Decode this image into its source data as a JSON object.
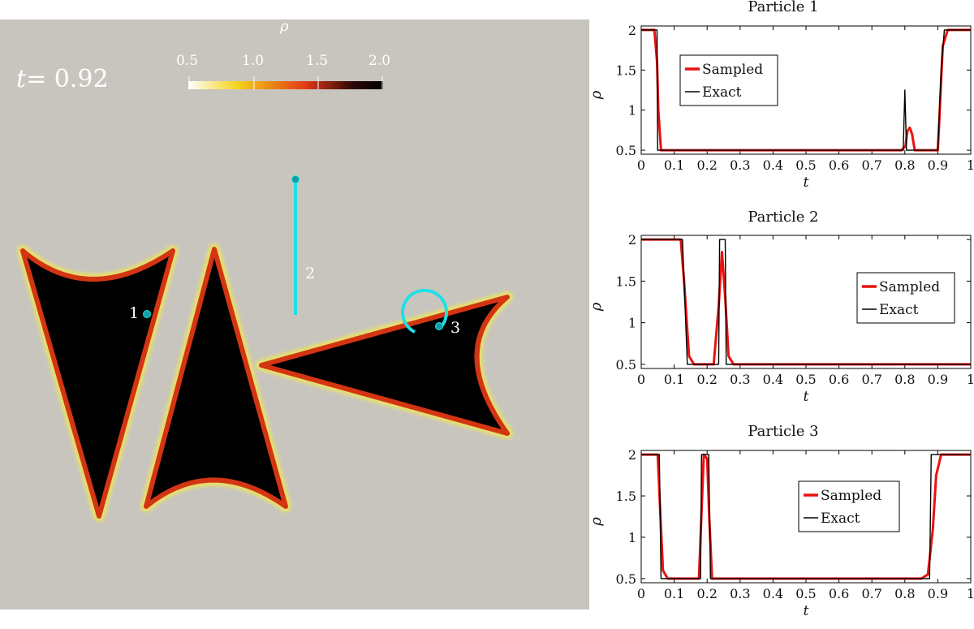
{
  "field": {
    "time_label_prefix": "t",
    "time_label_value": "= 0.92",
    "colorbar": {
      "title": "ρ",
      "ticks": [
        "0.5",
        "1.0",
        "1.5",
        "2.0"
      ],
      "range": [
        0.5,
        2.0
      ],
      "colors": [
        "#ffffff",
        "#f5d31c",
        "#e23b16",
        "#2b0707",
        "#000000"
      ]
    },
    "background_color": "#c8c5bf",
    "path_color": "#1ee0e6",
    "markers": [
      {
        "label": "1"
      },
      {
        "label": "2"
      },
      {
        "label": "3"
      }
    ]
  },
  "chart_data": [
    {
      "type": "line",
      "title": "Particle 1",
      "xlabel": "t",
      "ylabel": "ρ",
      "xlim": [
        0,
        1
      ],
      "ylim": [
        0.45,
        2.05
      ],
      "xticks": [
        "0",
        "0.1",
        "0.2",
        "0.3",
        "0.4",
        "0.5",
        "0.6",
        "0.7",
        "0.8",
        "0.9",
        "1"
      ],
      "yticks": [
        "0.5",
        "1",
        "1.5",
        "2"
      ],
      "legend_position": "upper-left",
      "series": [
        {
          "name": "Sampled",
          "color": "#e8120f",
          "x": [
            0,
            0.04,
            0.048,
            0.052,
            0.06,
            0.1,
            0.5,
            0.79,
            0.802,
            0.808,
            0.815,
            0.822,
            0.83,
            0.9,
            0.905,
            0.915,
            0.93,
            1
          ],
          "y": [
            2,
            2,
            1.6,
            1.0,
            0.5,
            0.5,
            0.5,
            0.5,
            0.55,
            0.74,
            0.78,
            0.7,
            0.5,
            0.5,
            0.9,
            1.8,
            2,
            2
          ]
        },
        {
          "name": "Exact",
          "color": "#000000",
          "x": [
            0,
            0.048,
            0.05,
            0.1,
            0.5,
            0.795,
            0.8,
            0.805,
            0.9,
            0.91,
            0.92,
            1
          ],
          "y": [
            2,
            2,
            0.5,
            0.5,
            0.5,
            0.5,
            1.25,
            0.5,
            0.5,
            1.5,
            2,
            2
          ]
        }
      ]
    },
    {
      "type": "line",
      "title": "Particle 2",
      "xlabel": "t",
      "ylabel": "ρ",
      "xlim": [
        0,
        1
      ],
      "ylim": [
        0.45,
        2.05
      ],
      "xticks": [
        "0",
        "0.1",
        "0.2",
        "0.3",
        "0.4",
        "0.5",
        "0.6",
        "0.7",
        "0.8",
        "0.9",
        "1"
      ],
      "yticks": [
        "0.5",
        "1",
        "1.5",
        "2"
      ],
      "legend_position": "right",
      "series": [
        {
          "name": "Sampled",
          "color": "#e8120f",
          "x": [
            0,
            0.12,
            0.13,
            0.145,
            0.16,
            0.22,
            0.235,
            0.245,
            0.255,
            0.265,
            0.28,
            1
          ],
          "y": [
            2,
            2,
            1.5,
            0.6,
            0.5,
            0.5,
            1.2,
            1.85,
            1.3,
            0.6,
            0.5,
            0.5
          ]
        },
        {
          "name": "Exact",
          "color": "#000000",
          "x": [
            0,
            0.125,
            0.14,
            0.235,
            0.238,
            0.255,
            0.258,
            1
          ],
          "y": [
            2,
            2,
            0.5,
            0.5,
            2,
            2,
            0.5,
            0.5
          ]
        }
      ]
    },
    {
      "type": "line",
      "title": "Particle 3",
      "xlabel": "t",
      "ylabel": "ρ",
      "xlim": [
        0,
        1
      ],
      "ylim": [
        0.45,
        2.05
      ],
      "xticks": [
        "0",
        "0.1",
        "0.2",
        "0.3",
        "0.4",
        "0.5",
        "0.6",
        "0.7",
        "0.8",
        "0.9",
        "1"
      ],
      "yticks": [
        "0.5",
        "1",
        "1.5",
        "2"
      ],
      "legend_position": "right",
      "series": [
        {
          "name": "Sampled",
          "color": "#e8120f",
          "x": [
            0,
            0.05,
            0.058,
            0.066,
            0.08,
            0.175,
            0.183,
            0.19,
            0.2,
            0.207,
            0.215,
            0.85,
            0.87,
            0.885,
            0.895,
            0.91,
            1
          ],
          "y": [
            2,
            2,
            1.3,
            0.6,
            0.5,
            0.5,
            1.3,
            2,
            1.95,
            1.2,
            0.5,
            0.5,
            0.55,
            1.1,
            1.75,
            2,
            2
          ]
        },
        {
          "name": "Exact",
          "color": "#000000",
          "x": [
            0,
            0.055,
            0.06,
            0.18,
            0.183,
            0.205,
            0.21,
            0.875,
            0.88,
            1
          ],
          "y": [
            2,
            2,
            0.5,
            0.5,
            2,
            2,
            0.5,
            0.5,
            2,
            2
          ]
        }
      ]
    }
  ]
}
